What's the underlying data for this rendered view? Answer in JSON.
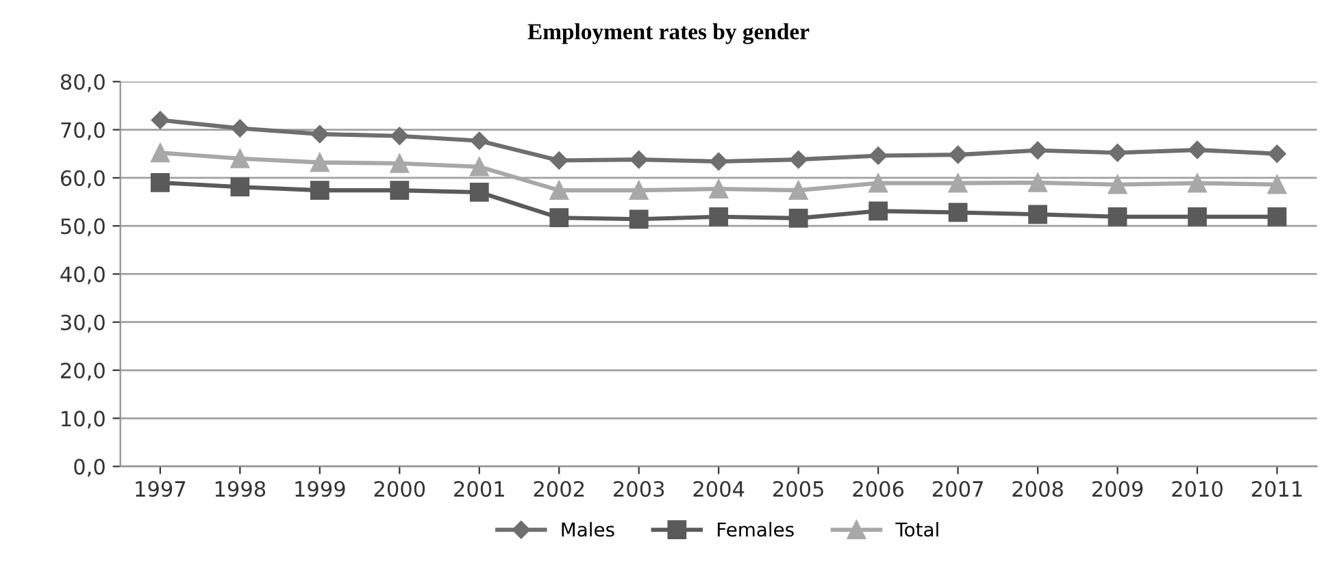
{
  "chart_data": {
    "type": "line",
    "title": "Employment rates by gender",
    "categories": [
      "1997",
      "1998",
      "1999",
      "2000",
      "2001",
      "2002",
      "2003",
      "2004",
      "2005",
      "2006",
      "2007",
      "2008",
      "2009",
      "2010",
      "2011"
    ],
    "series": [
      {
        "name": "Males",
        "color": "#6e6e6e",
        "marker": "diamond",
        "values": [
          72.0,
          70.3,
          69.1,
          68.7,
          67.7,
          63.6,
          63.8,
          63.4,
          63.8,
          64.6,
          64.8,
          65.7,
          65.2,
          65.8,
          65.0
        ]
      },
      {
        "name": "Females",
        "color": "#5a5a5a",
        "marker": "square",
        "values": [
          59.0,
          58.1,
          57.4,
          57.4,
          57.0,
          51.7,
          51.4,
          51.9,
          51.6,
          53.1,
          52.8,
          52.4,
          51.9,
          51.9,
          51.9
        ]
      },
      {
        "name": "Total",
        "color": "#a8a8a8",
        "marker": "triangle",
        "values": [
          65.2,
          64.0,
          63.2,
          63.0,
          62.3,
          57.4,
          57.4,
          57.7,
          57.4,
          58.9,
          58.9,
          59.0,
          58.6,
          58.9,
          58.6
        ]
      }
    ],
    "ylim": [
      0,
      80
    ],
    "yticks": [
      {
        "value": 0,
        "label": "0,0"
      },
      {
        "value": 10,
        "label": "10,0"
      },
      {
        "value": 20,
        "label": "20,0"
      },
      {
        "value": 30,
        "label": "30,0"
      },
      {
        "value": 40,
        "label": "40,0"
      },
      {
        "value": 50,
        "label": "50,0"
      },
      {
        "value": 60,
        "label": "60,0"
      },
      {
        "value": 70,
        "label": "70,0"
      },
      {
        "value": 80,
        "label": "80,0"
      }
    ],
    "grid": "y",
    "legend": "bottom"
  }
}
